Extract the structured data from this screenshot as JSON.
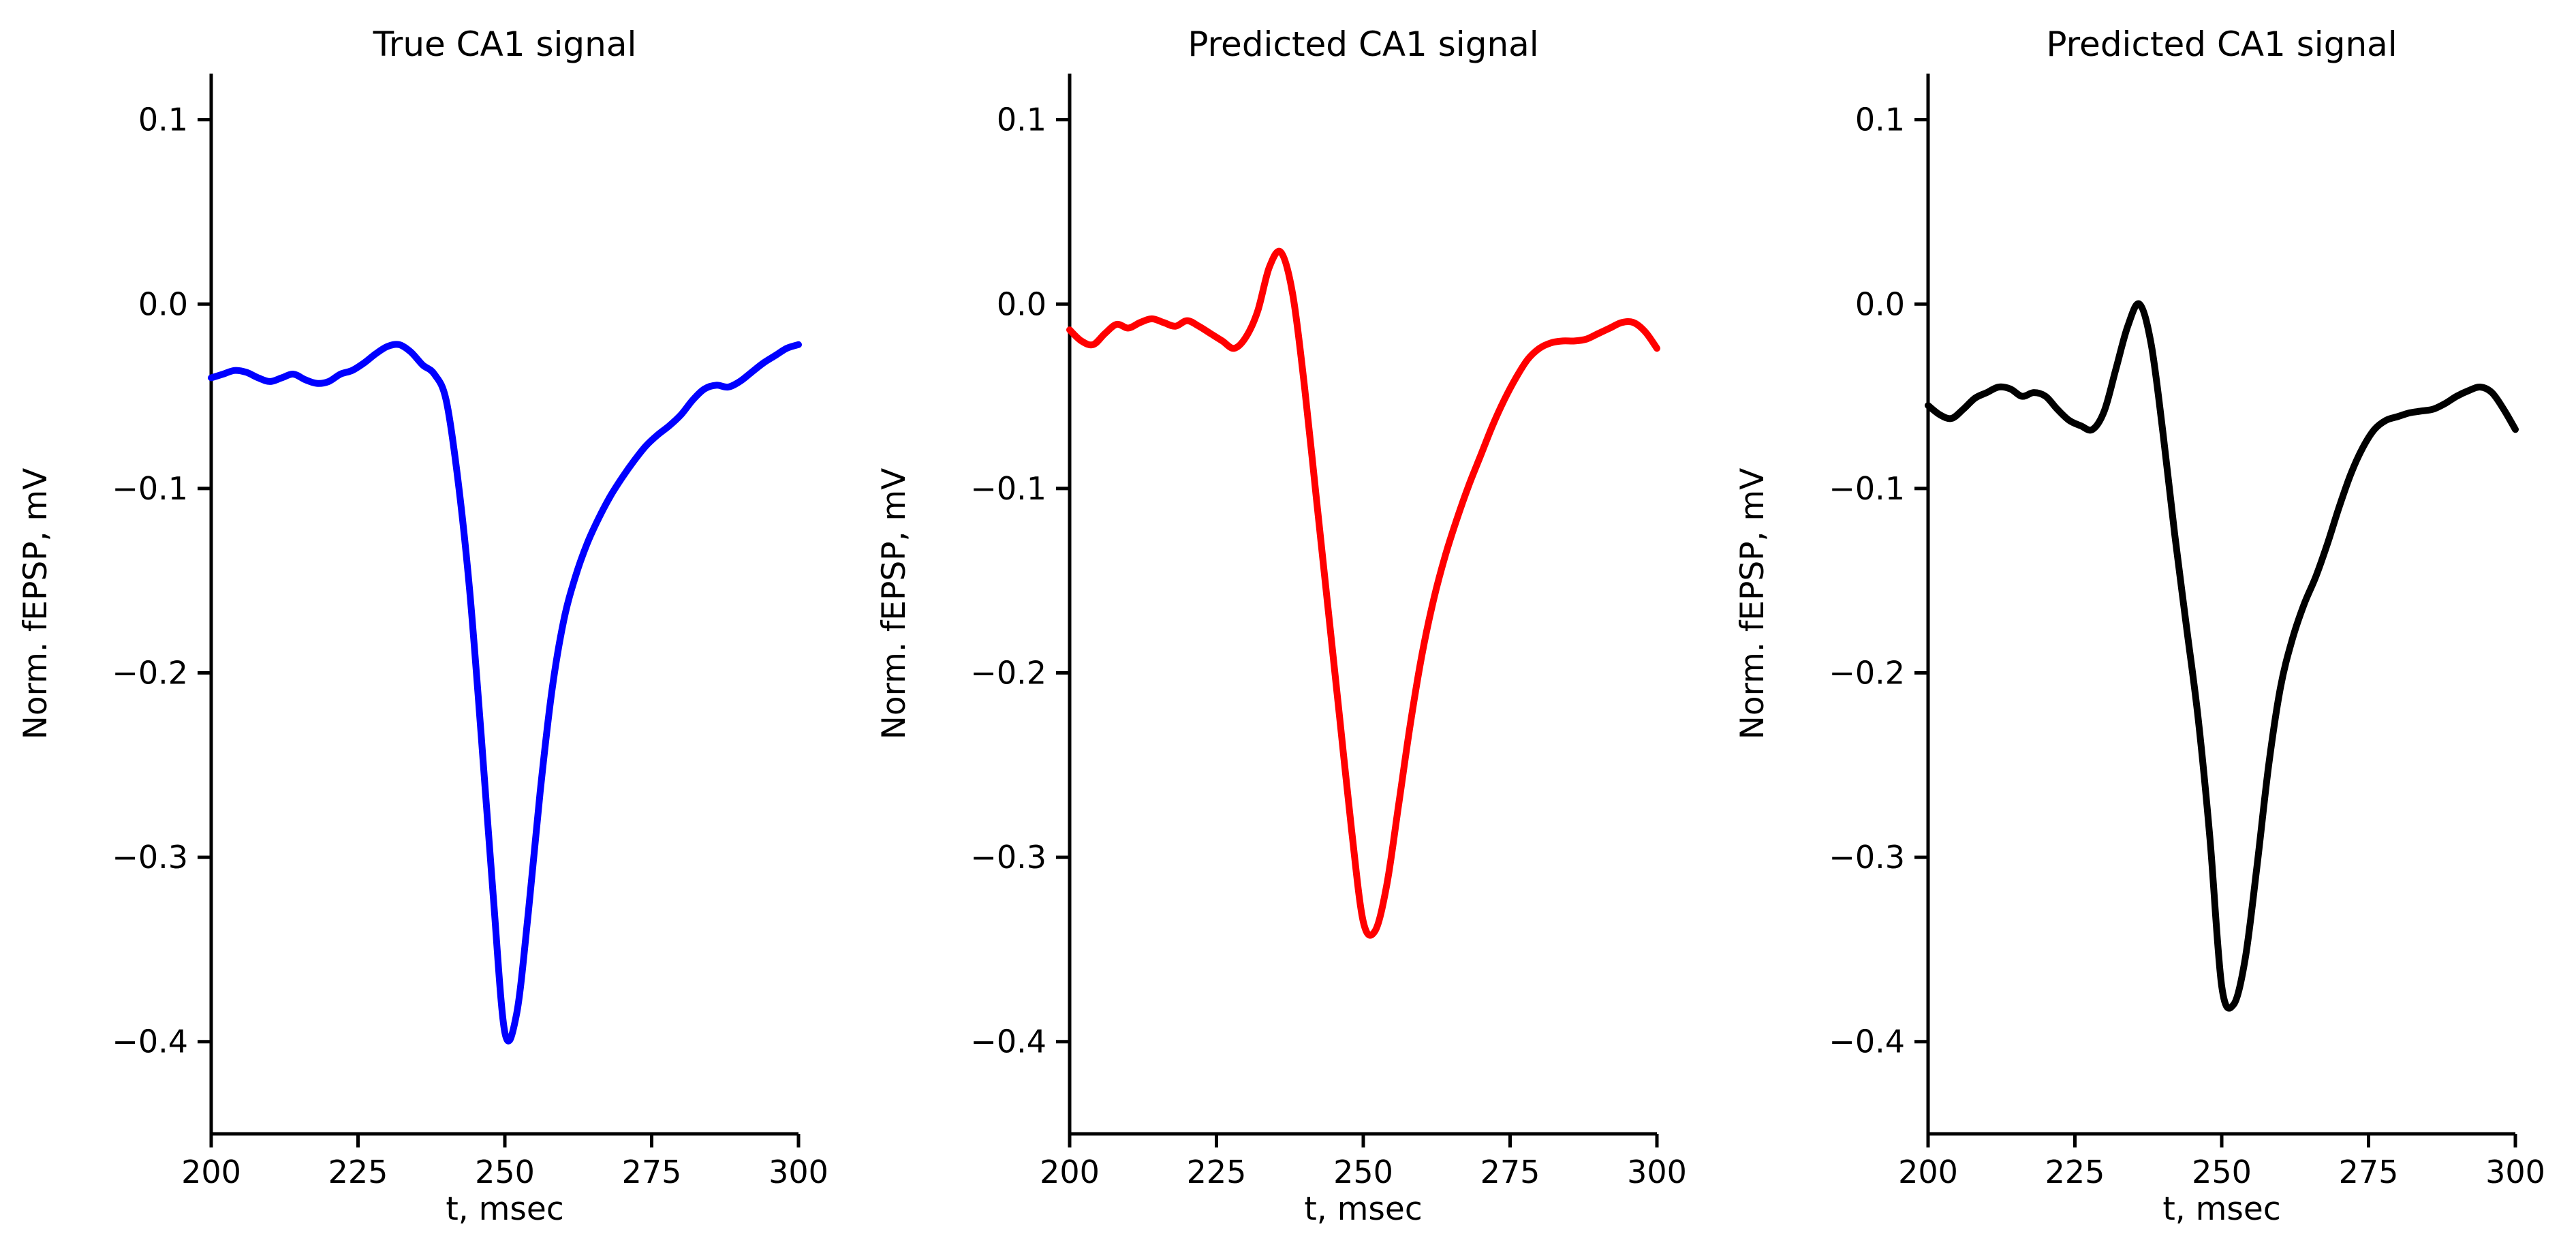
{
  "figure": {
    "background_color": "#ffffff",
    "axis_color": "#000000"
  },
  "chart_data": [
    {
      "type": "line",
      "title": "True CA1 signal",
      "xlabel": "t, msec",
      "ylabel": "Norm. fEPSP, mV",
      "series_name": "True CA1 signal",
      "series_color": "#0000ff",
      "xlim": [
        200,
        300
      ],
      "ylim": [
        -0.45,
        0.125
      ],
      "xticks": [
        200,
        225,
        250,
        275,
        300
      ],
      "yticks": [
        0.1,
        0.0,
        -0.1,
        -0.2,
        -0.3,
        -0.4
      ],
      "grid": false,
      "legend": "none",
      "x": [
        200,
        202,
        204,
        206,
        208,
        210,
        212,
        214,
        216,
        218,
        220,
        222,
        224,
        226,
        228,
        230,
        232,
        234,
        236,
        238,
        240,
        242,
        244,
        246,
        248,
        250,
        252,
        254,
        256,
        258,
        260,
        262,
        264,
        266,
        268,
        270,
        272,
        274,
        276,
        278,
        280,
        282,
        284,
        286,
        288,
        290,
        292,
        294,
        296,
        298,
        300
      ],
      "y": [
        -0.04,
        -0.038,
        -0.036,
        -0.037,
        -0.04,
        -0.042,
        -0.04,
        -0.038,
        -0.041,
        -0.043,
        -0.042,
        -0.038,
        -0.036,
        -0.032,
        -0.027,
        -0.023,
        -0.022,
        -0.026,
        -0.033,
        -0.038,
        -0.052,
        -0.095,
        -0.155,
        -0.235,
        -0.32,
        -0.395,
        -0.385,
        -0.33,
        -0.265,
        -0.21,
        -0.172,
        -0.148,
        -0.13,
        -0.116,
        -0.104,
        -0.094,
        -0.085,
        -0.077,
        -0.071,
        -0.066,
        -0.06,
        -0.052,
        -0.046,
        -0.044,
        -0.045,
        -0.042,
        -0.037,
        -0.032,
        -0.028,
        -0.024,
        -0.022
      ]
    },
    {
      "type": "line",
      "title": "Predicted CA1 signal",
      "xlabel": "t, msec",
      "ylabel": "Norm. fEPSP, mV",
      "series_name": "Predicted CA1 signal",
      "series_color": "#ff0000",
      "xlim": [
        200,
        300
      ],
      "ylim": [
        -0.45,
        0.125
      ],
      "xticks": [
        200,
        225,
        250,
        275,
        300
      ],
      "yticks": [
        0.1,
        0.0,
        -0.1,
        -0.2,
        -0.3,
        -0.4
      ],
      "grid": false,
      "legend": "none",
      "x": [
        200,
        202,
        204,
        206,
        208,
        210,
        212,
        214,
        216,
        218,
        220,
        222,
        224,
        226,
        228,
        230,
        232,
        234,
        236,
        238,
        240,
        242,
        244,
        246,
        248,
        250,
        252,
        254,
        256,
        258,
        260,
        262,
        264,
        266,
        268,
        270,
        272,
        274,
        276,
        278,
        280,
        282,
        284,
        286,
        288,
        290,
        292,
        294,
        296,
        298,
        300
      ],
      "y": [
        -0.014,
        -0.02,
        -0.022,
        -0.016,
        -0.011,
        -0.013,
        -0.01,
        -0.008,
        -0.01,
        -0.012,
        -0.009,
        -0.012,
        -0.016,
        -0.02,
        -0.024,
        -0.018,
        -0.004,
        0.02,
        0.028,
        0.005,
        -0.045,
        -0.105,
        -0.165,
        -0.225,
        -0.285,
        -0.335,
        -0.34,
        -0.315,
        -0.272,
        -0.228,
        -0.19,
        -0.16,
        -0.136,
        -0.116,
        -0.098,
        -0.082,
        -0.066,
        -0.052,
        -0.04,
        -0.03,
        -0.024,
        -0.021,
        -0.02,
        -0.02,
        -0.019,
        -0.016,
        -0.013,
        -0.01,
        -0.01,
        -0.015,
        -0.024
      ]
    },
    {
      "type": "line",
      "title": "Predicted CA1 signal",
      "xlabel": "t, msec",
      "ylabel": "Norm. fEPSP, mV",
      "series_name": "Predicted CA1 signal",
      "series_color": "#000000",
      "xlim": [
        200,
        300
      ],
      "ylim": [
        -0.45,
        0.125
      ],
      "xticks": [
        200,
        225,
        250,
        275,
        300
      ],
      "yticks": [
        0.1,
        0.0,
        -0.1,
        -0.2,
        -0.3,
        -0.4
      ],
      "grid": false,
      "legend": "none",
      "x": [
        200,
        202,
        204,
        206,
        208,
        210,
        212,
        214,
        216,
        218,
        220,
        222,
        224,
        226,
        228,
        230,
        232,
        234,
        236,
        238,
        240,
        242,
        244,
        246,
        248,
        250,
        252,
        254,
        256,
        258,
        260,
        262,
        264,
        266,
        268,
        270,
        272,
        274,
        276,
        278,
        280,
        282,
        284,
        286,
        288,
        290,
        292,
        294,
        296,
        298,
        300
      ],
      "y": [
        -0.055,
        -0.06,
        -0.062,
        -0.057,
        -0.051,
        -0.048,
        -0.045,
        -0.046,
        -0.05,
        -0.048,
        -0.05,
        -0.057,
        -0.063,
        -0.066,
        -0.068,
        -0.058,
        -0.035,
        -0.012,
        0.0,
        -0.022,
        -0.07,
        -0.125,
        -0.175,
        -0.225,
        -0.29,
        -0.37,
        -0.38,
        -0.355,
        -0.305,
        -0.25,
        -0.208,
        -0.182,
        -0.163,
        -0.148,
        -0.13,
        -0.11,
        -0.092,
        -0.078,
        -0.068,
        -0.063,
        -0.061,
        -0.059,
        -0.058,
        -0.057,
        -0.054,
        -0.05,
        -0.047,
        -0.045,
        -0.048,
        -0.057,
        -0.068
      ]
    }
  ]
}
